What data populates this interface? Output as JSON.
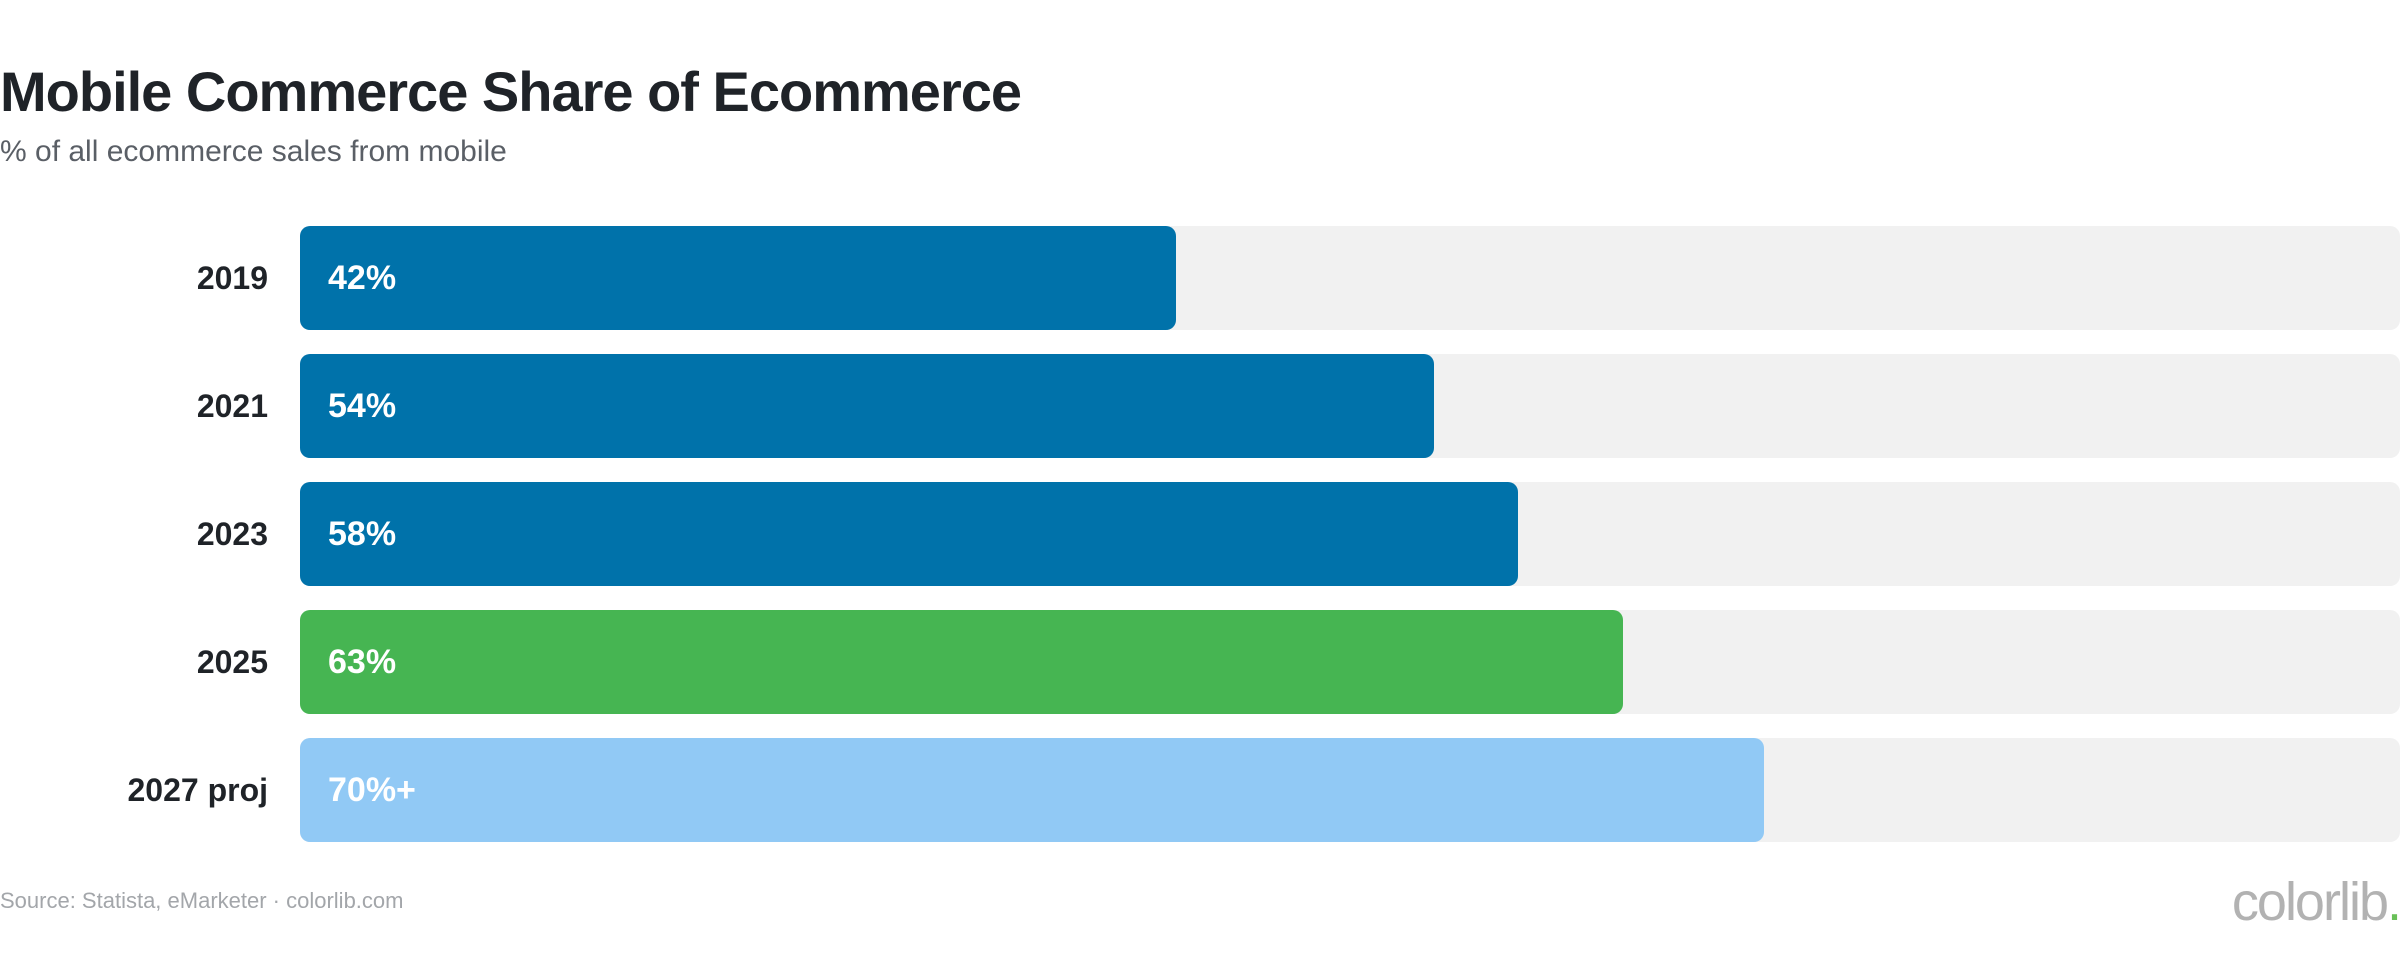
{
  "header": {
    "title": "Mobile Commerce Share of Ecommerce",
    "subtitle": "% of all ecommerce sales from mobile"
  },
  "chart_data": {
    "type": "bar",
    "orientation": "horizontal",
    "title": "Mobile Commerce Share of Ecommerce",
    "subtitle": "% of all ecommerce sales from mobile",
    "xlim": [
      0,
      100
    ],
    "grid": false,
    "categories": [
      "2019",
      "2021",
      "2023",
      "2025",
      "2027 proj"
    ],
    "values": [
      42,
      54,
      58,
      63,
      70
    ],
    "data_labels": [
      "42%",
      "54%",
      "58%",
      "63%",
      "70%+"
    ],
    "colors": [
      "#0072aa",
      "#0072aa",
      "#0072aa",
      "#46b552",
      "#91c9f5"
    ],
    "track_color": "#f1f1f1"
  },
  "footer": {
    "source": "Source: Statista, eMarketer · colorlib.com",
    "brand": "colorlib",
    "brand_dot": ".",
    "brand_accent": "#69c058"
  }
}
